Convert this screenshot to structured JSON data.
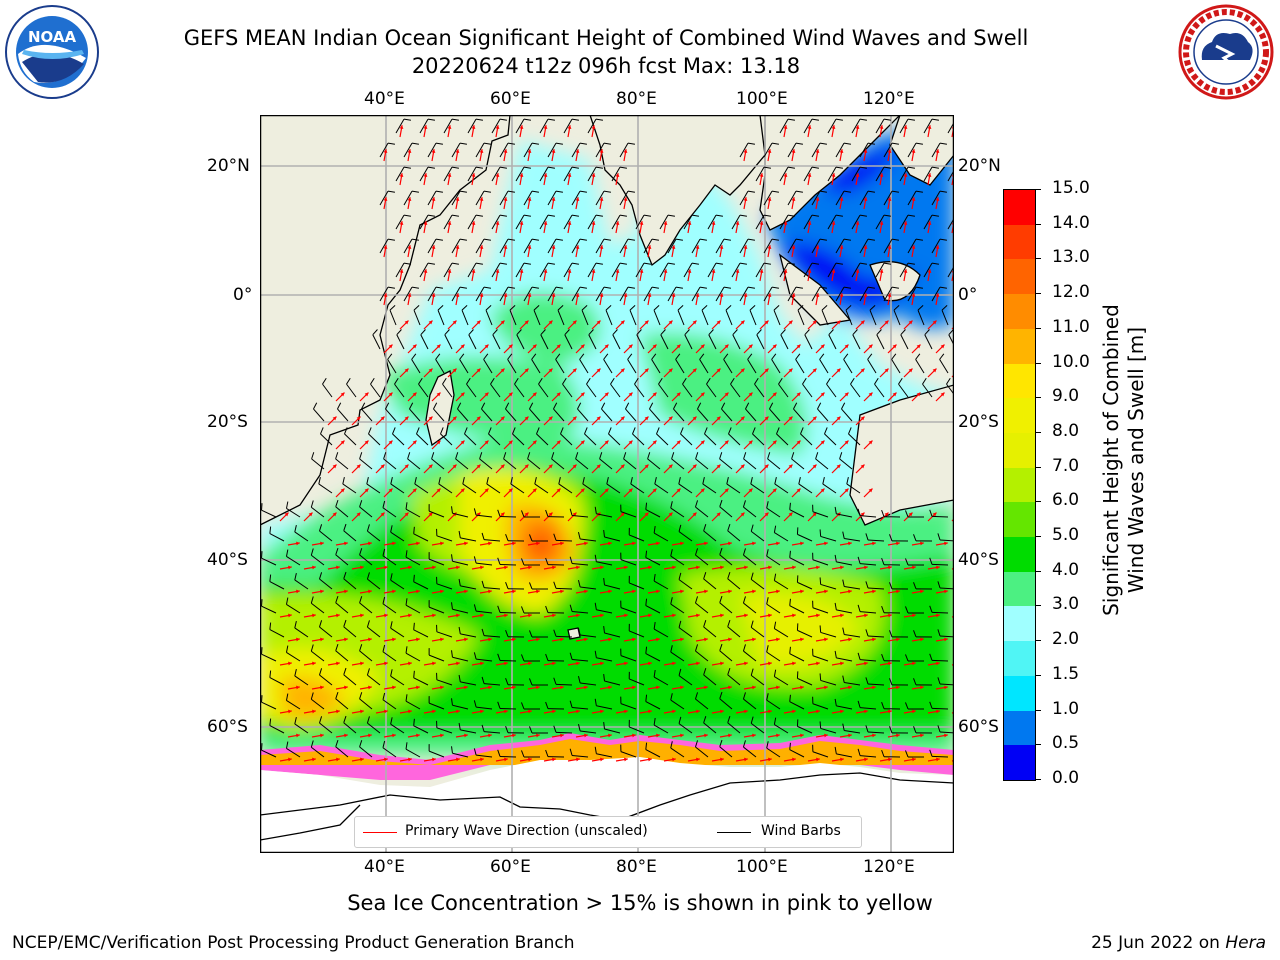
{
  "header": {
    "title_line1": "GEFS MEAN Indian Ocean Significant Height of Combined Wind Waves and Swell",
    "title_line2": "20220624 t12z 096h fcst   Max: 13.18",
    "left_logo_text": "NOAA",
    "left_logo_ring_text": "NATIONAL OCEANIC AND ATMOSPHERIC ADMINISTRATION · U.S. DEPARTMENT OF COMMERCE",
    "right_logo_ring_text": "NATIONAL WEATHER SERVICE"
  },
  "map": {
    "lon_labels": [
      "40°E",
      "60°E",
      "80°E",
      "100°E",
      "120°E"
    ],
    "lat_labels": [
      "20°N",
      "0°",
      "20°S",
      "40°S",
      "60°S"
    ],
    "lon_values": [
      40,
      60,
      80,
      100,
      120
    ],
    "lat_values": [
      20,
      0,
      -20,
      -40,
      -60
    ],
    "lon_range": [
      20,
      130
    ],
    "lat_range": [
      -75,
      28
    ],
    "max_value": 13.18,
    "wave_high_center": {
      "lon": 65,
      "lat": -38,
      "value": 13.18
    },
    "colors": {
      "land": "#eeeedf",
      "ice_white": "#ffffff",
      "coast": "#000000",
      "grid": "#b0b0b0",
      "wave_arrow": "#ff0000",
      "wind_barb": "#000000"
    }
  },
  "legend": {
    "items": [
      {
        "label": "Primary Wave Direction (unscaled)",
        "color": "#ff0000"
      },
      {
        "label": "Wind Barbs",
        "color": "#000000"
      }
    ]
  },
  "colorbar": {
    "label_line1": "Significant Height of Combined",
    "label_line2": "Wind Waves and Swell [m]",
    "ticks": [
      "15.0",
      "14.0",
      "13.0",
      "12.0",
      "11.0",
      "10.0",
      "9.0",
      "8.0",
      "7.0",
      "6.0",
      "5.0",
      "4.0",
      "3.0",
      "2.0",
      "1.5",
      "1.0",
      "0.5",
      "0.0"
    ],
    "levels": [
      0,
      0.5,
      1,
      1.5,
      2,
      3,
      4,
      5,
      6,
      7,
      8,
      9,
      10,
      11,
      12,
      13,
      14,
      15
    ],
    "colors": [
      "#0000f5",
      "#0078f0",
      "#00e6ff",
      "#50f5f5",
      "#a0ffff",
      "#4cf082",
      "#00dc00",
      "#64e600",
      "#b4f000",
      "#e6f000",
      "#f0f000",
      "#ffe600",
      "#ffb400",
      "#ff8c00",
      "#ff6400",
      "#ff3c00",
      "#ff0000"
    ]
  },
  "caption": "Sea Ice Concentration > 15% is shown in pink to yellow",
  "footer": {
    "left": "NCEP/EMC/Verification Post Processing Product Generation Branch",
    "right_prefix": "25 Jun 2022 on ",
    "right_host": "Hera"
  }
}
